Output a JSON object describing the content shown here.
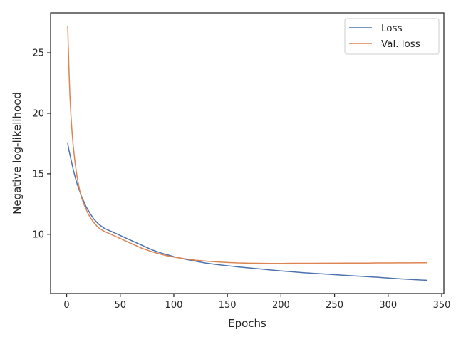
{
  "chart_data": {
    "type": "line",
    "xlabel": "Epochs",
    "ylabel": "Negative log-likelihood",
    "xlim": [
      -15,
      352
    ],
    "ylim": [
      5.1,
      28.3
    ],
    "xticks": [
      0,
      50,
      100,
      150,
      200,
      250,
      300,
      350
    ],
    "yticks": [
      10,
      15,
      20,
      25
    ],
    "grid": false,
    "legend_position": "top-right",
    "series": [
      {
        "name": "Loss",
        "color": "#4c72b0",
        "x": [
          1,
          2,
          3,
          4,
          5,
          6,
          8,
          10,
          12,
          14,
          16,
          18,
          20,
          22,
          25,
          28,
          31,
          35,
          40,
          45,
          50,
          55,
          60,
          65,
          70,
          75,
          80,
          85,
          90,
          95,
          100,
          110,
          120,
          130,
          140,
          150,
          160,
          170,
          180,
          190,
          200,
          210,
          220,
          230,
          240,
          250,
          260,
          270,
          280,
          290,
          300,
          310,
          320,
          330,
          336
        ],
        "y": [
          17.5,
          17.0,
          16.6,
          16.2,
          15.8,
          15.4,
          14.7,
          14.1,
          13.6,
          13.1,
          12.7,
          12.3,
          12.0,
          11.7,
          11.3,
          11.0,
          10.75,
          10.5,
          10.3,
          10.1,
          9.9,
          9.7,
          9.5,
          9.3,
          9.1,
          8.9,
          8.7,
          8.55,
          8.4,
          8.28,
          8.15,
          7.95,
          7.78,
          7.62,
          7.5,
          7.4,
          7.3,
          7.22,
          7.14,
          7.05,
          6.97,
          6.9,
          6.83,
          6.77,
          6.72,
          6.66,
          6.6,
          6.55,
          6.5,
          6.45,
          6.38,
          6.32,
          6.27,
          6.22,
          6.2
        ]
      },
      {
        "name": "Val. loss",
        "color": "#dd8452",
        "x": [
          1,
          2,
          3,
          4,
          5,
          6,
          8,
          10,
          12,
          14,
          16,
          18,
          20,
          22,
          25,
          28,
          31,
          35,
          40,
          45,
          50,
          55,
          60,
          65,
          70,
          75,
          80,
          85,
          90,
          95,
          100,
          110,
          120,
          130,
          140,
          150,
          160,
          170,
          180,
          190,
          200,
          210,
          220,
          230,
          240,
          250,
          260,
          270,
          280,
          290,
          300,
          310,
          320,
          330,
          336
        ],
        "y": [
          27.2,
          24.0,
          21.5,
          19.8,
          18.5,
          17.4,
          15.8,
          14.6,
          13.7,
          13.0,
          12.5,
          12.1,
          11.7,
          11.4,
          11.0,
          10.7,
          10.45,
          10.25,
          10.05,
          9.85,
          9.65,
          9.45,
          9.25,
          9.05,
          8.85,
          8.7,
          8.55,
          8.42,
          8.3,
          8.2,
          8.12,
          7.98,
          7.86,
          7.78,
          7.72,
          7.67,
          7.63,
          7.61,
          7.6,
          7.59,
          7.59,
          7.6,
          7.6,
          7.6,
          7.61,
          7.61,
          7.62,
          7.62,
          7.62,
          7.63,
          7.63,
          7.64,
          7.64,
          7.65,
          7.65
        ]
      }
    ]
  }
}
